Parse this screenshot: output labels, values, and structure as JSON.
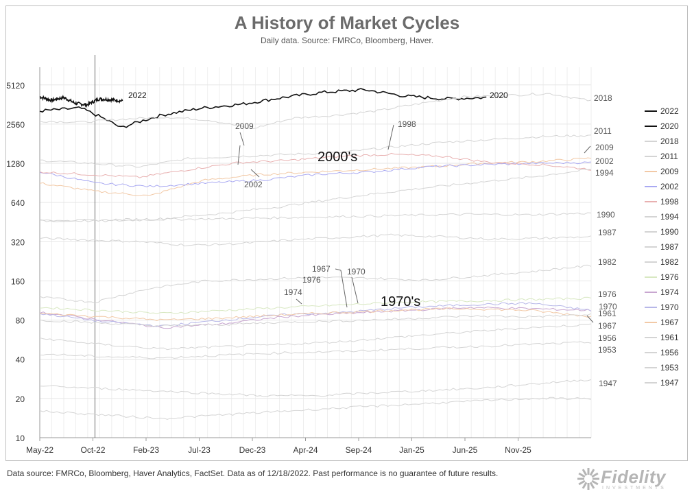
{
  "chart_data": {
    "type": "line",
    "title": "A History of Market Cycles",
    "subtitle": "Daily data.  Source: FMRCo, Bloomberg, Haver.",
    "y_scale": "log2",
    "ylim": [
      10,
      7000
    ],
    "y_ticks": [
      "5120",
      "2560",
      "1280",
      "640",
      "320",
      "160",
      "80",
      "40",
      "20",
      "10"
    ],
    "x_ticks": [
      "May-22",
      "Oct-22",
      "Feb-23",
      "Jul-23",
      "Dec-23",
      "Apr-24",
      "Sep-24",
      "Jan-25",
      "Jun-25",
      "Nov-25"
    ],
    "grid": true,
    "vertical_marker": "Oct-22",
    "annotations": [
      "2000's",
      "1970's"
    ],
    "series": [
      {
        "name": "2022",
        "color": "#111111",
        "values": [
          4150,
          3900,
          4100,
          3700,
          3600,
          4000,
          3950,
          3850
        ]
      },
      {
        "name": "2020",
        "color": "#111111",
        "values": [
          3230,
          3400,
          2400,
          3000,
          3400,
          3650,
          4100,
          4500,
          4700,
          4200,
          4000,
          4100
        ]
      },
      {
        "name": "2018",
        "color": "#d4d4d4",
        "values": [
          2700,
          2650,
          2800,
          2900,
          2750,
          2350,
          2850,
          3000,
          3250,
          3700,
          4150,
          4250,
          4400,
          3850
        ]
      },
      {
        "name": "2011",
        "color": "#d4d4d4",
        "values": [
          1350,
          1280,
          1200,
          1400,
          1450,
          1500,
          1550,
          1700,
          1850,
          1950,
          2050,
          2100
        ]
      },
      {
        "name": "2009",
        "color": "#f2c9a6",
        "values": [
          900,
          780,
          720,
          950,
          1050,
          1100,
          1150,
          1200,
          1280,
          1320,
          1400
        ]
      },
      {
        "name": "2002",
        "color": "#a9a9f2",
        "values": [
          1100,
          900,
          850,
          900,
          950,
          1050,
          1100,
          1200,
          1250,
          1280,
          1300
        ]
      },
      {
        "name": "1998",
        "color": "#e8b0b0",
        "values": [
          1100,
          1050,
          1000,
          1150,
          1300,
          1350,
          1450,
          1500,
          1450,
          1300,
          1250,
          1150
        ]
      },
      {
        "name": "1994",
        "color": "#d4d4d4",
        "values": [
          460,
          470,
          480,
          530,
          600,
          700,
          800,
          900,
          1000,
          1150
        ]
      },
      {
        "name": "1990",
        "color": "#d4d4d4",
        "values": [
          470,
          460,
          475,
          480,
          490,
          500,
          510,
          520,
          515,
          530
        ]
      },
      {
        "name": "1987",
        "color": "#d4d4d4",
        "values": [
          340,
          330,
          320,
          300,
          310,
          330,
          345,
          360,
          350,
          335,
          340,
          350
        ]
      },
      {
        "name": "1982",
        "color": "#d4d4d4",
        "values": [
          120,
          110,
          140,
          160,
          165,
          170,
          168,
          162,
          175,
          190,
          210
        ]
      },
      {
        "name": "1976",
        "color": "#d8e8c2",
        "values": [
          100,
          95,
          90,
          95,
          100,
          105,
          110,
          112,
          115,
          118
        ]
      },
      {
        "name": "1974",
        "color": "#c8a6d0",
        "values": [
          92,
          80,
          70,
          75,
          85,
          90,
          95,
          100,
          98,
          95
        ]
      },
      {
        "name": "1970",
        "color": "#b7b7e8",
        "values": [
          90,
          78,
          72,
          80,
          88,
          92,
          100,
          105,
          108,
          95
        ]
      },
      {
        "name": "1967",
        "color": "#f2c9a6",
        "values": [
          90,
          85,
          80,
          83,
          88,
          92,
          96,
          98,
          95,
          85
        ]
      },
      {
        "name": "1961",
        "color": "#d4d4d4",
        "values": [
          80,
          76,
          72,
          74,
          77,
          79,
          82,
          86,
          85,
          88
        ]
      },
      {
        "name": "1956",
        "color": "#d4d4d4",
        "values": [
          58,
          52,
          48,
          50,
          52,
          55,
          60,
          65,
          70,
          74
        ]
      },
      {
        "name": "1953",
        "color": "#d4d4d4",
        "values": [
          44,
          42,
          41,
          43,
          45,
          46,
          48,
          50,
          52,
          54
        ]
      },
      {
        "name": "1947",
        "color": "#d4d4d4",
        "values": [
          25,
          24,
          23,
          22,
          21,
          21,
          22,
          23,
          24,
          26,
          28
        ]
      },
      {
        "name": "",
        "color": "#d4d4d4",
        "values": [
          16,
          15,
          14,
          15,
          16,
          17,
          18,
          19,
          20,
          20
        ]
      }
    ],
    "line_labels": [
      {
        "text": "2022",
        "series": "2022"
      },
      {
        "text": "2020",
        "series": "2020"
      },
      {
        "text": "2018",
        "series": "2018"
      },
      {
        "text": "2011",
        "series": "2011"
      },
      {
        "text": "2009",
        "series": "2009"
      },
      {
        "text": "2009",
        "series": "2009"
      },
      {
        "text": "1998",
        "series": "1998"
      },
      {
        "text": "2002",
        "series": "2002"
      },
      {
        "text": "2002",
        "series": "2002"
      },
      {
        "text": "1994",
        "series": "1994"
      },
      {
        "text": "1990",
        "series": "1990"
      },
      {
        "text": "1987",
        "series": "1987"
      },
      {
        "text": "1982",
        "series": "1982"
      },
      {
        "text": "1976",
        "series": "1976"
      },
      {
        "text": "1974",
        "series": "1974"
      },
      {
        "text": "1967",
        "series": "1967"
      },
      {
        "text": "1970",
        "series": "1970"
      },
      {
        "text": "1976",
        "series": "1976"
      },
      {
        "text": "1970",
        "series": "1970"
      },
      {
        "text": "1961",
        "series": "1961"
      },
      {
        "text": "1967",
        "series": "1967"
      },
      {
        "text": "1956",
        "series": "1956"
      },
      {
        "text": "1953",
        "series": "1953"
      },
      {
        "text": "1947",
        "series": "1947"
      }
    ]
  },
  "footer": "Data source: FMRCo, Bloomberg, Haver Analytics, FactSet. Data as of 12/18/2022. Past performance is no guarantee of future results.",
  "logo": {
    "name": "Fidelity",
    "tagline": "INVESTMENTS"
  }
}
